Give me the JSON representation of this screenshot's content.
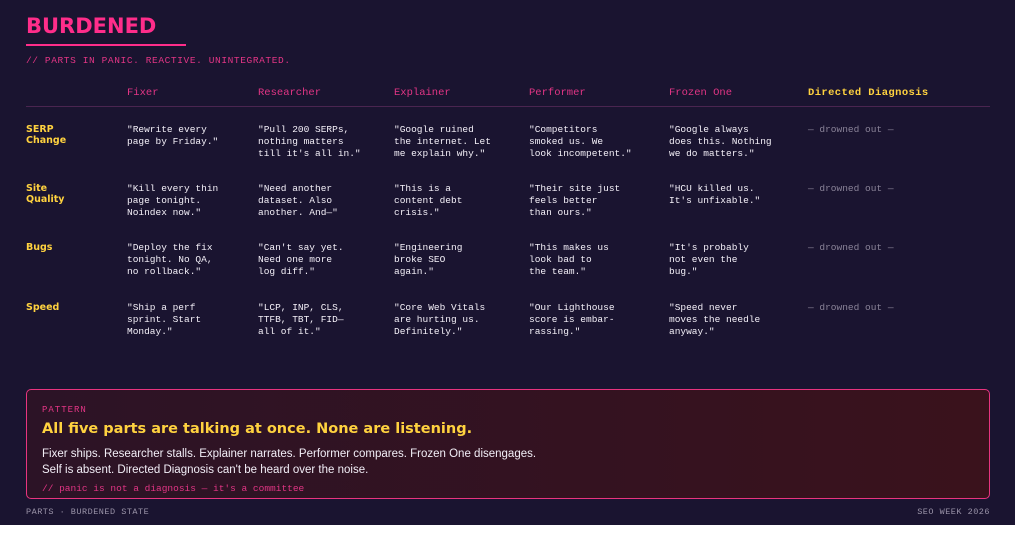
{
  "header": {
    "title": "BURDENED",
    "subtitle": "// PARTS IN PANIC. REACTIVE. UNINTEGRATED."
  },
  "table": {
    "columns": [
      "Fixer",
      "Researcher",
      "Explainer",
      "Performer",
      "Frozen One",
      "Directed Diagnosis"
    ],
    "rows": [
      {
        "label": "SERP Change",
        "cells": [
          [
            "\"Rewrite every",
            "page by Friday.\""
          ],
          [
            "\"Pull 200 SERPs,",
            "nothing matters",
            "till it's all in.\""
          ],
          [
            "\"Google ruined",
            "the internet. Let",
            "me explain why.\""
          ],
          [
            "\"Competitors",
            "smoked us. We",
            "look incompetent.\""
          ],
          [
            "\"Google always",
            "does this. Nothing",
            "we do matters.\""
          ],
          [
            "— drowned out —"
          ]
        ]
      },
      {
        "label": "Site Quality",
        "cells": [
          [
            "\"Kill every thin",
            "page tonight.",
            "Noindex now.\""
          ],
          [
            "\"Need another",
            "dataset. Also",
            "another. And—\""
          ],
          [
            "\"This is a",
            "content debt",
            "crisis.\""
          ],
          [
            "\"Their site just",
            "feels better",
            "than ours.\""
          ],
          [
            "\"HCU killed us.",
            "It's unfixable.\""
          ],
          [
            "— drowned out —"
          ]
        ]
      },
      {
        "label": "Bugs",
        "cells": [
          [
            "\"Deploy the fix",
            "tonight. No QA,",
            "no rollback.\""
          ],
          [
            "\"Can't say yet.",
            "Need one more",
            "log diff.\""
          ],
          [
            "\"Engineering",
            "broke SEO",
            "again.\""
          ],
          [
            "\"This makes us",
            "look bad to",
            "the team.\""
          ],
          [
            "\"It's probably",
            "not even the",
            "bug.\""
          ],
          [
            "— drowned out —"
          ]
        ]
      },
      {
        "label": "Speed",
        "cells": [
          [
            "\"Ship a perf",
            "sprint. Start",
            "Monday.\""
          ],
          [
            "\"LCP, INP, CLS,",
            "TTFB, TBT, FID—",
            "all of it.\""
          ],
          [
            "\"Core Web Vitals",
            "are hurting us.",
            "Definitely.\""
          ],
          [
            "\"Our Lighthouse",
            "score is embar-",
            "rassing.\""
          ],
          [
            "\"Speed never",
            "moves the needle",
            "anyway.\""
          ],
          [
            "— drowned out —"
          ]
        ]
      }
    ]
  },
  "pattern": {
    "kicker": "PATTERN",
    "headline": "All five parts are talking at once. None are listening.",
    "body": [
      "Fixer ships. Researcher stalls. Explainer narrates. Performer compares. Frozen One disengages.",
      "Self is absent. Directed Diagnosis can't be heard over the noise."
    ],
    "note": "// panic is not a diagnosis — it's a committee"
  },
  "footer": {
    "left": "PARTS · BURDENED STATE",
    "right": "SEO WEEK 2026"
  }
}
